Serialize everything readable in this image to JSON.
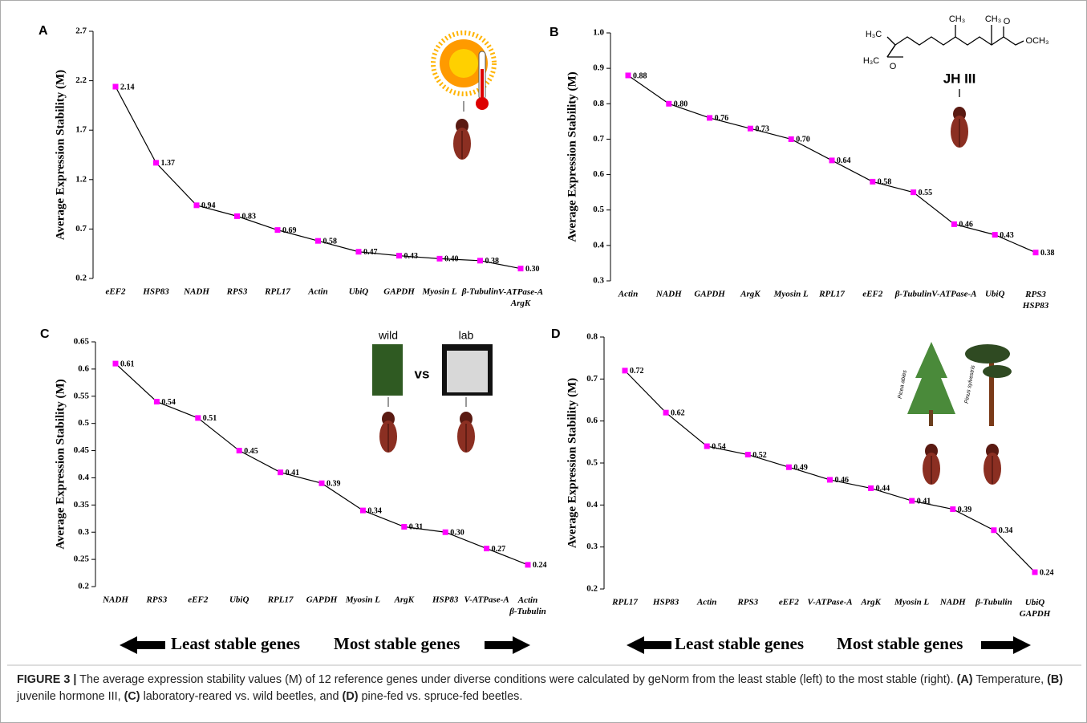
{
  "chart_data": [
    {
      "type": "line",
      "panel": "A",
      "y_label": "Average Expression Stability (M)",
      "categories": [
        "eEF2",
        "HSP83",
        "NADH",
        "RPS3",
        "RPL17",
        "Actin",
        "UbiQ",
        "GAPDH",
        "Myosin L",
        "β-Tubulin",
        "V-ATPase-A\nArgK"
      ],
      "values": [
        2.14,
        1.37,
        0.94,
        0.83,
        0.69,
        0.58,
        0.47,
        0.43,
        0.4,
        0.38,
        0.3
      ],
      "value_labels": [
        "2.14",
        "1.37",
        "0.94",
        "0.83",
        "0.69",
        "0.58",
        "0.47",
        "0.43",
        "0.40",
        "0.38",
        "0.30"
      ],
      "color": "#ff00ff",
      "ylim": [
        0.2,
        2.7
      ],
      "yticks": [
        0.2,
        0.7,
        1.2,
        1.7,
        2.2,
        2.7
      ]
    },
    {
      "type": "line",
      "panel": "B",
      "y_label": "Average Expression Stability (M)",
      "categories": [
        "Actin",
        "NADH",
        "GAPDH",
        "ArgK",
        "Myosin L",
        "RPL17",
        "eEF2",
        "β-Tubulin",
        "V-ATPase-A",
        "UbiQ",
        "RPS3\nHSP83"
      ],
      "values": [
        0.88,
        0.8,
        0.76,
        0.73,
        0.7,
        0.64,
        0.58,
        0.55,
        0.46,
        0.43,
        0.38
      ],
      "value_labels": [
        "0.88",
        "0.80",
        "0.76",
        "0.73",
        "0.70",
        "0.64",
        "0.58",
        "0.55",
        "0.46",
        "0.43",
        "0.38"
      ],
      "color": "#ff00ff",
      "ylim": [
        0.3,
        1.0
      ],
      "yticks": [
        0.3,
        0.4,
        0.5,
        0.6,
        0.7,
        0.8,
        0.9,
        {
          "value": 1.0,
          "label": "1.0"
        }
      ],
      "annotations": [
        "H₃C",
        "H₃C",
        "O",
        "CH₃",
        "CH₃",
        "O",
        "OCH₃",
        "JH III"
      ]
    },
    {
      "type": "line",
      "panel": "C",
      "y_label": "Average Expression Stability (M)",
      "categories": [
        "NADH",
        "RPS3",
        "eEF2",
        "UbiQ",
        "RPL17",
        "GAPDH",
        "Myosin L",
        "ArgK",
        "HSP83",
        "V-ATPase-A",
        "Actin\nβ-Tubulin"
      ],
      "values": [
        0.61,
        0.54,
        0.51,
        0.45,
        0.41,
        0.39,
        0.34,
        0.31,
        0.3,
        0.27,
        0.24
      ],
      "value_labels": [
        "0.61",
        "0.54",
        "0.51",
        "0.45",
        "0.41",
        "0.39",
        "0.34",
        "0.31",
        "0.30",
        "0.27",
        "0.24"
      ],
      "color": "#ff00ff",
      "ylim": [
        0.2,
        0.65
      ],
      "yticks": [
        0.2,
        0.25,
        0.3,
        0.35,
        0.4,
        0.45,
        0.5,
        0.55,
        0.6,
        0.65
      ],
      "annotations": [
        "wild",
        "vs",
        "lab"
      ]
    },
    {
      "type": "line",
      "panel": "D",
      "y_label": "Average Expression Stability (M)",
      "categories": [
        "RPL17",
        "HSP83",
        "Actin",
        "RPS3",
        "eEF2",
        "V-ATPase-A",
        "ArgK",
        "Myosin L",
        "NADH",
        "β-Tubulin",
        "UbiQ\nGAPDH"
      ],
      "values": [
        0.72,
        0.62,
        0.54,
        0.52,
        0.49,
        0.46,
        0.44,
        0.41,
        0.39,
        0.34,
        0.24
      ],
      "value_labels": [
        "0.72",
        "0.62",
        "0.54",
        "0.52",
        "0.49",
        "0.46",
        "0.44",
        "0.41",
        "0.39",
        "0.34",
        "0.24"
      ],
      "color": "#ff00ff",
      "ylim": [
        0.2,
        0.8
      ],
      "yticks": [
        0.2,
        0.3,
        0.4,
        0.5,
        0.6,
        0.7,
        0.8
      ],
      "annotations": [
        "Picea abies",
        "Pinus sylvestris"
      ]
    }
  ],
  "arrow_labels": [
    [
      "Least stable genes",
      "Most stable genes"
    ],
    [
      "Least stable genes",
      "Most stable genes"
    ]
  ],
  "caption": {
    "label": "FIGURE 3 |",
    "parts": [
      "The average expression stability values (M) of 12 reference genes under diverse conditions were calculated by geNorm from the least stable (left) to the most stable (right).",
      "(A)",
      "Temperature,",
      "(B)",
      "juvenile hormone III,",
      "(C)",
      "laboratory-reared vs. wild beetles, and",
      "(D)",
      "pine-fed vs. spruce-fed beetles."
    ]
  }
}
